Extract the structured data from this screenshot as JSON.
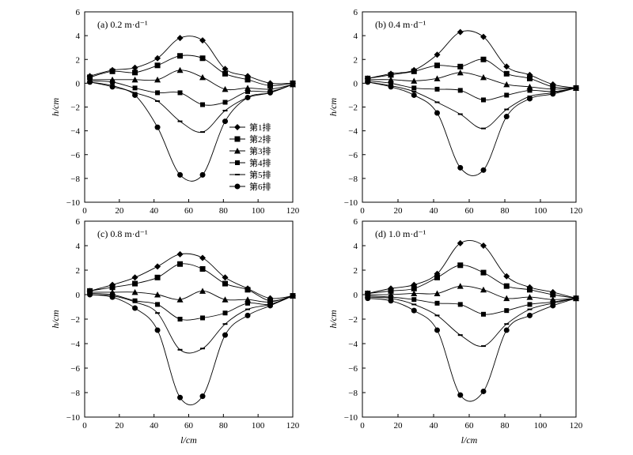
{
  "figure": {
    "xlabel": "l/cm",
    "ylabel": "h/cm"
  },
  "chart_data": [
    {
      "type": "line",
      "panel": "a",
      "title": "(a) 0.2 m·d⁻¹",
      "xlabel": "",
      "ylabel": "h/cm",
      "xlim": [
        0,
        120
      ],
      "ylim": [
        -10,
        6
      ],
      "xticks": [
        "0",
        "20",
        "40",
        "60",
        "80",
        "100",
        "120"
      ],
      "yticks": [
        "−10",
        "−8",
        "−6",
        "−4",
        "−2",
        "0",
        "2",
        "4",
        "6"
      ],
      "legend": {
        "position": "center-left",
        "show": true
      },
      "x": [
        3,
        16,
        29,
        42,
        55,
        68,
        81,
        94,
        107,
        120
      ],
      "series": [
        {
          "name": "第1排",
          "marker": "diamond",
          "values": [
            0.6,
            1.1,
            1.3,
            2.1,
            3.8,
            3.6,
            1.2,
            0.6,
            0.0,
            0.0
          ]
        },
        {
          "name": "第2排",
          "marker": "square",
          "values": [
            0.5,
            1.0,
            0.9,
            1.5,
            2.3,
            2.1,
            0.8,
            0.3,
            -0.2,
            0.0
          ]
        },
        {
          "name": "第3排",
          "marker": "triangle",
          "values": [
            0.3,
            0.3,
            0.3,
            0.3,
            1.1,
            0.5,
            -0.5,
            -0.4,
            -0.5,
            -0.1
          ]
        },
        {
          "name": "第4排",
          "marker": "square-small",
          "values": [
            0.2,
            0.1,
            -0.4,
            -0.8,
            -0.8,
            -1.8,
            -1.6,
            -0.7,
            -0.7,
            -0.1
          ]
        },
        {
          "name": "第5排",
          "marker": "dash",
          "values": [
            0.1,
            -0.2,
            -0.8,
            -1.5,
            -3.2,
            -4.1,
            -2.3,
            -1.2,
            -0.8,
            -0.1
          ]
        },
        {
          "name": "第6排",
          "marker": "circle",
          "values": [
            0.1,
            -0.3,
            -1.0,
            -3.7,
            -7.7,
            -7.7,
            -3.2,
            -1.2,
            -0.8,
            -0.1
          ]
        }
      ]
    },
    {
      "type": "line",
      "panel": "b",
      "title": "(b) 0.4 m·d⁻¹",
      "xlabel": "",
      "ylabel": "h/cm",
      "xlim": [
        0,
        120
      ],
      "ylim": [
        -10,
        6
      ],
      "xticks": [
        "0",
        "20",
        "40",
        "60",
        "80",
        "100",
        "120"
      ],
      "yticks": [
        "−10",
        "−8",
        "−6",
        "−4",
        "−2",
        "0",
        "2",
        "4",
        "6"
      ],
      "legend": {
        "show": false
      },
      "x": [
        3,
        16,
        29,
        42,
        55,
        68,
        81,
        94,
        107,
        120
      ],
      "series": [
        {
          "name": "第1排",
          "marker": "diamond",
          "values": [
            0.4,
            0.8,
            1.1,
            2.4,
            4.3,
            3.9,
            1.4,
            0.7,
            -0.1,
            -0.4
          ]
        },
        {
          "name": "第2排",
          "marker": "square",
          "values": [
            0.4,
            0.7,
            1.0,
            1.5,
            1.4,
            2.0,
            0.8,
            0.4,
            -0.3,
            -0.4
          ]
        },
        {
          "name": "第3排",
          "marker": "triangle",
          "values": [
            0.3,
            0.3,
            0.2,
            0.4,
            0.9,
            0.5,
            -0.1,
            -0.3,
            -0.5,
            -0.4
          ]
        },
        {
          "name": "第4排",
          "marker": "square-small",
          "values": [
            0.2,
            0.0,
            -0.4,
            -0.5,
            -0.6,
            -1.4,
            -1.0,
            -0.6,
            -0.7,
            -0.4
          ]
        },
        {
          "name": "第5排",
          "marker": "dash",
          "values": [
            0.1,
            -0.2,
            -0.7,
            -1.6,
            -2.6,
            -3.8,
            -2.2,
            -1.1,
            -0.8,
            -0.4
          ]
        },
        {
          "name": "第6排",
          "marker": "circle",
          "values": [
            0.1,
            -0.3,
            -1.0,
            -2.5,
            -7.1,
            -7.3,
            -2.8,
            -1.3,
            -0.9,
            -0.4
          ]
        }
      ]
    },
    {
      "type": "line",
      "panel": "c",
      "title": "(c) 0.8 m·d⁻¹",
      "xlabel": "l/cm",
      "ylabel": "h/cm",
      "xlim": [
        0,
        120
      ],
      "ylim": [
        -10,
        6
      ],
      "xticks": [
        "0",
        "20",
        "40",
        "60",
        "80",
        "100",
        "120"
      ],
      "yticks": [
        "−10",
        "−8",
        "−6",
        "−4",
        "−2",
        "0",
        "2",
        "4",
        "6"
      ],
      "legend": {
        "show": false
      },
      "x": [
        3,
        16,
        29,
        42,
        55,
        68,
        81,
        94,
        107,
        120
      ],
      "series": [
        {
          "name": "第1排",
          "marker": "diamond",
          "values": [
            0.3,
            0.8,
            1.4,
            2.3,
            3.3,
            3.0,
            1.4,
            0.5,
            -0.3,
            -0.1
          ]
        },
        {
          "name": "第2排",
          "marker": "square",
          "values": [
            0.3,
            0.6,
            0.9,
            1.4,
            2.5,
            2.1,
            0.9,
            0.4,
            -0.5,
            -0.1
          ]
        },
        {
          "name": "第3排",
          "marker": "triangle",
          "values": [
            0.2,
            0.2,
            0.2,
            0.0,
            -0.4,
            0.3,
            -0.4,
            -0.4,
            -0.6,
            -0.1
          ]
        },
        {
          "name": "第4排",
          "marker": "square-small",
          "values": [
            0.1,
            0.0,
            -0.5,
            -0.8,
            -2.0,
            -1.9,
            -1.5,
            -0.7,
            -0.8,
            -0.1
          ]
        },
        {
          "name": "第5排",
          "marker": "dash",
          "values": [
            0.0,
            -0.1,
            -0.6,
            -1.5,
            -4.5,
            -4.4,
            -2.4,
            -1.2,
            -0.8,
            -0.1
          ]
        },
        {
          "name": "第6排",
          "marker": "circle",
          "values": [
            0.0,
            -0.2,
            -1.1,
            -2.9,
            -8.4,
            -8.3,
            -3.3,
            -1.7,
            -0.9,
            -0.1
          ]
        }
      ]
    },
    {
      "type": "line",
      "panel": "d",
      "title": "(d) 1.0 m·d⁻¹",
      "xlabel": "l/cm",
      "ylabel": "h/cm",
      "xlim": [
        0,
        120
      ],
      "ylim": [
        -10,
        6
      ],
      "xticks": [
        "0",
        "20",
        "40",
        "60",
        "80",
        "100",
        "120"
      ],
      "yticks": [
        "−10",
        "−8",
        "−6",
        "−4",
        "−2",
        "0",
        "2",
        "4",
        "6"
      ],
      "legend": {
        "show": false
      },
      "x": [
        3,
        16,
        29,
        42,
        55,
        68,
        81,
        94,
        107,
        120
      ],
      "series": [
        {
          "name": "第1排",
          "marker": "diamond",
          "values": [
            0.1,
            0.5,
            0.8,
            1.7,
            4.2,
            4.0,
            1.5,
            0.6,
            0.2,
            -0.3
          ]
        },
        {
          "name": "第2排",
          "marker": "square",
          "values": [
            0.1,
            0.3,
            0.5,
            1.4,
            2.4,
            1.8,
            0.7,
            0.4,
            0.0,
            -0.3
          ]
        },
        {
          "name": "第3排",
          "marker": "triangle",
          "values": [
            0.0,
            0.0,
            0.1,
            0.1,
            0.7,
            0.4,
            -0.3,
            -0.2,
            -0.4,
            -0.3
          ]
        },
        {
          "name": "第4排",
          "marker": "square-small",
          "values": [
            -0.1,
            -0.2,
            -0.4,
            -0.7,
            -0.8,
            -1.6,
            -1.3,
            -0.8,
            -0.6,
            -0.3
          ]
        },
        {
          "name": "第5排",
          "marker": "dash",
          "values": [
            -0.2,
            -0.3,
            -0.8,
            -1.7,
            -3.3,
            -4.2,
            -2.4,
            -1.2,
            -0.7,
            -0.3
          ]
        },
        {
          "name": "第6排",
          "marker": "circle",
          "values": [
            -0.3,
            -0.5,
            -1.3,
            -2.9,
            -8.2,
            -7.9,
            -2.9,
            -1.7,
            -0.9,
            -0.3
          ]
        }
      ]
    }
  ]
}
